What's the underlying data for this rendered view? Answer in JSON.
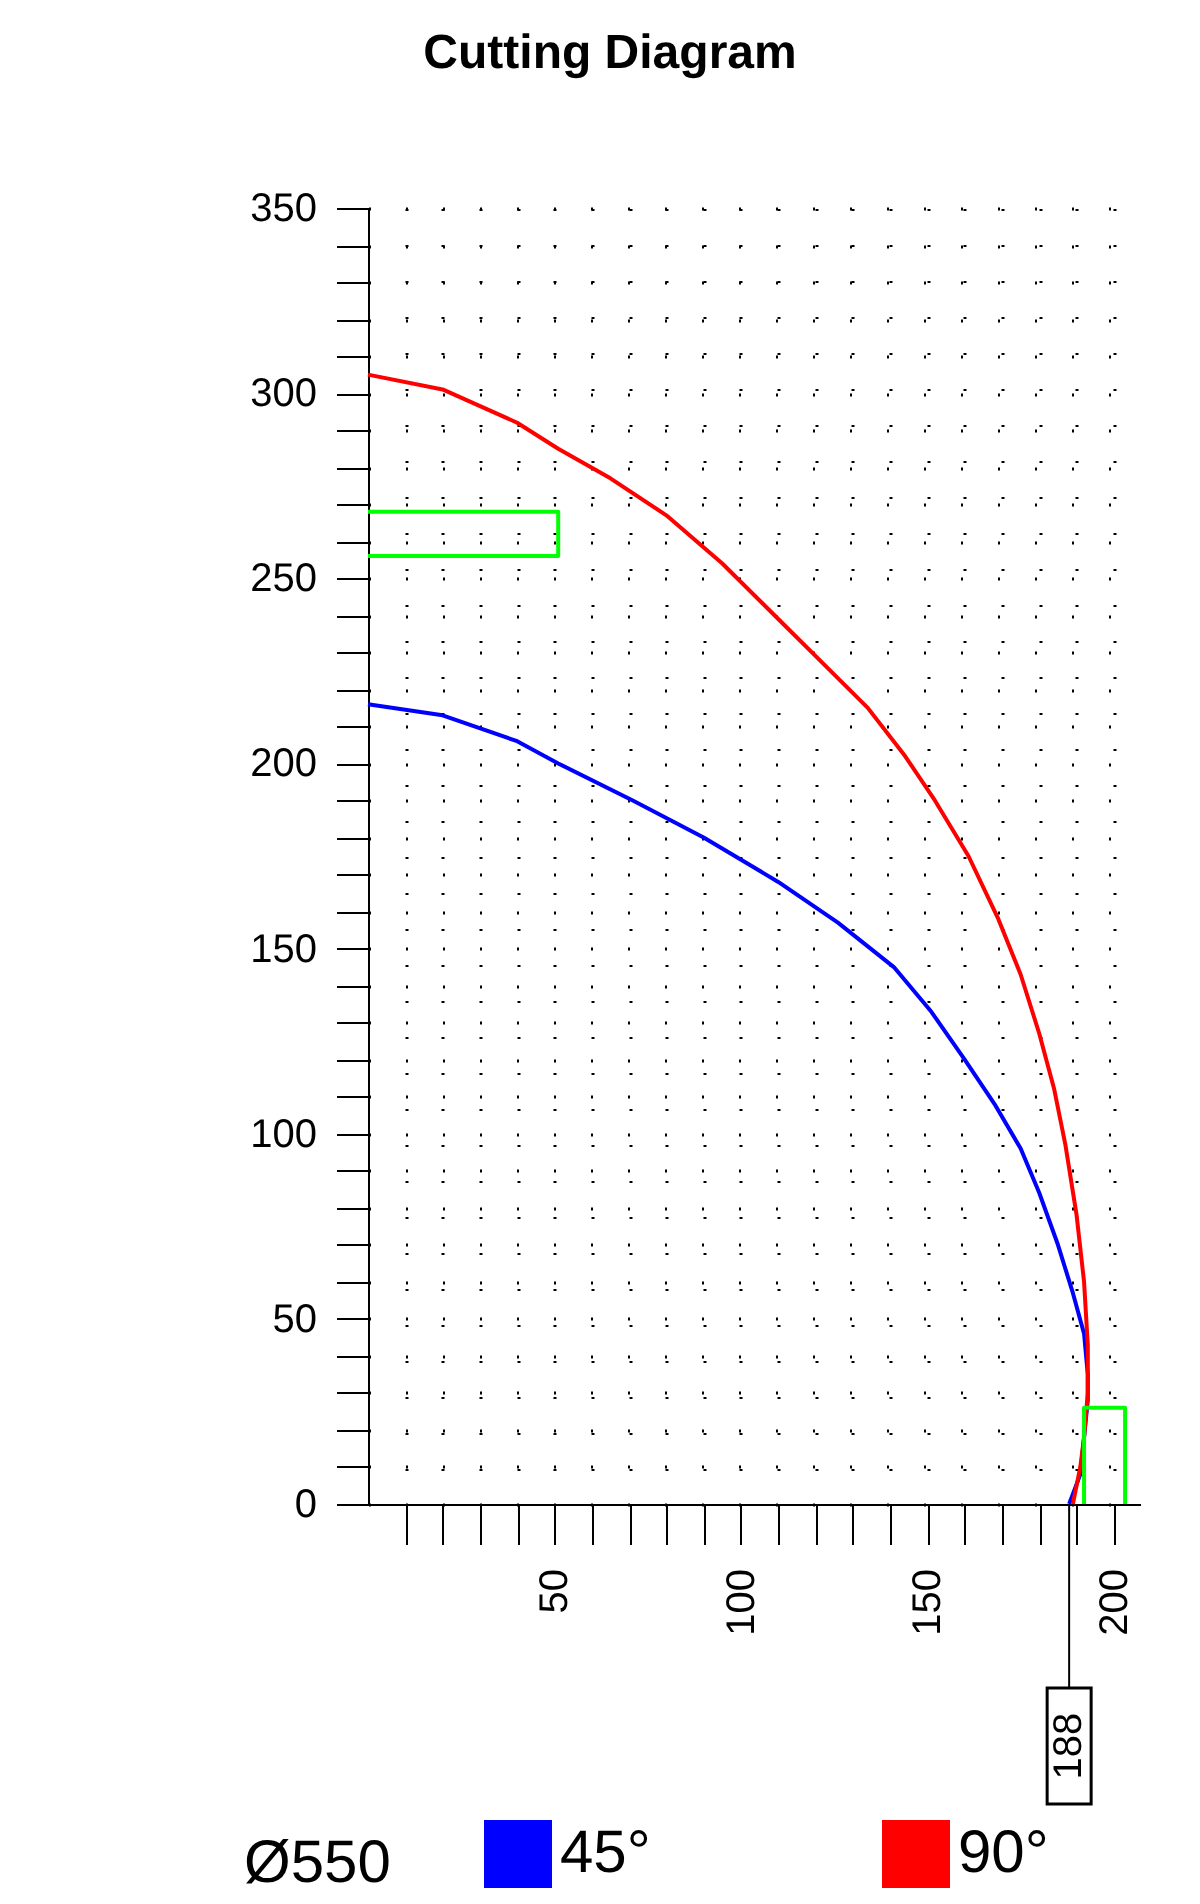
{
  "chart_data": {
    "type": "line",
    "title": "Cutting Diagram",
    "xlim": [
      0,
      207
    ],
    "ylim": [
      0,
      350
    ],
    "xticks": [
      {
        "value": 10,
        "label": null
      },
      {
        "value": 20,
        "label": null
      },
      {
        "value": 30,
        "label": null
      },
      {
        "value": 40,
        "label": null
      },
      50,
      {
        "value": 60,
        "label": null
      },
      {
        "value": 70,
        "label": null
      },
      {
        "value": 80,
        "label": null
      },
      {
        "value": 90,
        "label": null
      },
      100,
      {
        "value": 110,
        "label": null
      },
      {
        "value": 120,
        "label": null
      },
      {
        "value": 130,
        "label": null
      },
      {
        "value": 140,
        "label": null
      },
      150,
      {
        "value": 160,
        "label": null
      },
      {
        "value": 170,
        "label": null
      },
      {
        "value": 180,
        "label": null
      },
      {
        "value": 190,
        "label": null
      },
      200
    ],
    "yticks": [
      0,
      {
        "value": 10,
        "label": null
      },
      {
        "value": 20,
        "label": null
      },
      {
        "value": 30,
        "label": null
      },
      {
        "value": 40,
        "label": null
      },
      50,
      {
        "value": 60,
        "label": null
      },
      {
        "value": 70,
        "label": null
      },
      {
        "value": 80,
        "label": null
      },
      {
        "value": 90,
        "label": null
      },
      100,
      {
        "value": 110,
        "label": null
      },
      {
        "value": 120,
        "label": null
      },
      {
        "value": 130,
        "label": null
      },
      {
        "value": 140,
        "label": null
      },
      150,
      {
        "value": 160,
        "label": null
      },
      {
        "value": 170,
        "label": null
      },
      {
        "value": 180,
        "label": null
      },
      {
        "value": 190,
        "label": null
      },
      200,
      {
        "value": 210,
        "label": null
      },
      {
        "value": 220,
        "label": null
      },
      {
        "value": 230,
        "label": null
      },
      {
        "value": 240,
        "label": null
      },
      250,
      {
        "value": 260,
        "label": null
      },
      {
        "value": 270,
        "label": null
      },
      {
        "value": 280,
        "label": null
      },
      {
        "value": 290,
        "label": null
      },
      300,
      {
        "value": 310,
        "label": null
      },
      {
        "value": 320,
        "label": null
      },
      {
        "value": 330,
        "label": null
      },
      {
        "value": 340,
        "label": null
      },
      350
    ],
    "grid": true,
    "legend": "bottom",
    "line_style": "solid",
    "marker": "none",
    "series": [
      {
        "name": "45°",
        "color": "#0000ff",
        "x": [
          0,
          20,
          40,
          51,
          71,
          90,
          110,
          126,
          141,
          151,
          160,
          168,
          175,
          180,
          185,
          189,
          192,
          193,
          193,
          192,
          191,
          188
        ],
        "values": [
          216,
          213,
          206,
          200,
          190,
          180,
          168,
          157,
          145,
          133,
          120,
          108,
          96,
          84,
          70,
          57,
          46,
          35,
          28,
          18,
          8,
          0
        ]
      },
      {
        "name": "90°",
        "color": "#ff0000",
        "x": [
          0,
          20,
          40,
          51,
          65,
          80,
          95,
          110,
          122,
          134,
          144,
          152,
          161,
          169,
          175,
          180,
          184,
          187,
          190,
          192,
          193,
          193,
          192,
          191,
          189
        ],
        "values": [
          305,
          301,
          292,
          285,
          277,
          267,
          254,
          239,
          227,
          215,
          202,
          190,
          175,
          158,
          143,
          127,
          112,
          97,
          78,
          60,
          43,
          30,
          18,
          10,
          0
        ]
      },
      {
        "color": "#00ff00",
        "x": [
          0,
          51,
          51,
          0
        ],
        "values": [
          268,
          268,
          256,
          256
        ]
      },
      {
        "color": "#00ff00",
        "x": [
          192,
          192,
          203,
          203
        ],
        "values": [
          0,
          26,
          26,
          0
        ]
      }
    ],
    "annotations": [
      {
        "text": "188",
        "x": 188,
        "y": 0
      },
      "Ø550"
    ]
  }
}
